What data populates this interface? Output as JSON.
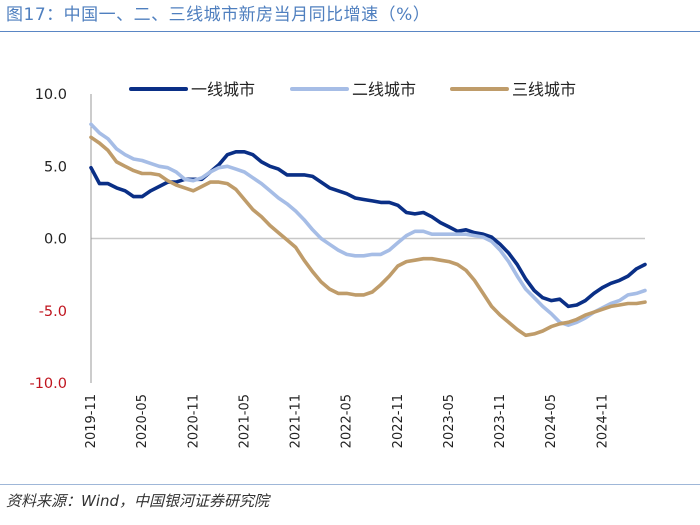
{
  "header": {
    "title": "图17：中国一、二、三线城市新房当月同比增速（%）"
  },
  "footer": {
    "source": "资料来源：Wind，中国银河证券研究院"
  },
  "colors": {
    "tier1": "#0a2f86",
    "tier2": "#a6bde6",
    "tier3": "#bf9c6a",
    "negative_label": "#c0141e",
    "positive_label": "#222222",
    "zero_line": "#c8c8c8",
    "axis": "#999999"
  },
  "chart_data": {
    "type": "line",
    "title": "中国一、二、三线城市新房当月同比增速（%）",
    "ylabel": "%",
    "ylim": [
      -10,
      10
    ],
    "yticks": [
      10,
      5,
      0,
      -5,
      -10
    ],
    "ytick_labels": [
      "10.0",
      "5.0",
      "0.0",
      "-5.0",
      "-10.0"
    ],
    "xlim": [
      0,
      65
    ],
    "xticks": [
      0,
      6,
      12,
      18,
      24,
      30,
      36,
      42,
      48,
      54,
      60
    ],
    "xtick_labels": [
      "2019-11",
      "2020-05",
      "2020-11",
      "2021-05",
      "2021-11",
      "2022-05",
      "2022-11",
      "2023-05",
      "2023-11",
      "2024-05",
      "2024-11"
    ],
    "legend_position": "top",
    "series": [
      {
        "name": "一线城市",
        "key": "tier1",
        "x": [
          0,
          1,
          2,
          3,
          4,
          5,
          6,
          7,
          8,
          9,
          10,
          11,
          12,
          13,
          14,
          15,
          16,
          17,
          18,
          19,
          20,
          21,
          22,
          23,
          24,
          25,
          26,
          27,
          28,
          29,
          30,
          31,
          32,
          33,
          34,
          35,
          36,
          37,
          38,
          39,
          40,
          41,
          42,
          43,
          44,
          45,
          46,
          47,
          48,
          49,
          50,
          51,
          52,
          53,
          54,
          55,
          56,
          57,
          58,
          59,
          60,
          61,
          62,
          63,
          64,
          65
        ],
        "values": [
          4.9,
          3.8,
          3.8,
          3.5,
          3.3,
          2.9,
          2.9,
          3.3,
          3.6,
          3.9,
          3.9,
          4.1,
          4.1,
          4.1,
          4.6,
          5.1,
          5.8,
          6.0,
          6.0,
          5.8,
          5.3,
          5.0,
          4.8,
          4.4,
          4.4,
          4.4,
          4.3,
          3.9,
          3.5,
          3.3,
          3.1,
          2.8,
          2.7,
          2.6,
          2.5,
          2.5,
          2.3,
          1.8,
          1.7,
          1.8,
          1.5,
          1.1,
          0.8,
          0.5,
          0.6,
          0.4,
          0.3,
          0.1,
          -0.4,
          -1.0,
          -1.8,
          -2.8,
          -3.6,
          -4.1,
          -4.3,
          -4.2,
          -4.7,
          -4.6,
          -4.3,
          -3.8,
          -3.4,
          -3.1,
          -2.9,
          -2.6,
          -2.1,
          -1.8
        ]
      },
      {
        "name": "二线城市",
        "key": "tier2",
        "x": [
          0,
          1,
          2,
          3,
          4,
          5,
          6,
          7,
          8,
          9,
          10,
          11,
          12,
          13,
          14,
          15,
          16,
          17,
          18,
          19,
          20,
          21,
          22,
          23,
          24,
          25,
          26,
          27,
          28,
          29,
          30,
          31,
          32,
          33,
          34,
          35,
          36,
          37,
          38,
          39,
          40,
          41,
          42,
          43,
          44,
          45,
          46,
          47,
          48,
          49,
          50,
          51,
          52,
          53,
          54,
          55,
          56,
          57,
          58,
          59,
          60,
          61,
          62,
          63,
          64,
          65
        ],
        "values": [
          7.9,
          7.3,
          6.9,
          6.2,
          5.8,
          5.5,
          5.4,
          5.2,
          5.0,
          4.9,
          4.6,
          4.1,
          4.0,
          4.2,
          4.6,
          4.9,
          5.0,
          4.8,
          4.6,
          4.2,
          3.8,
          3.3,
          2.8,
          2.4,
          1.9,
          1.3,
          0.6,
          0.0,
          -0.4,
          -0.8,
          -1.1,
          -1.2,
          -1.2,
          -1.1,
          -1.1,
          -0.8,
          -0.3,
          0.2,
          0.5,
          0.5,
          0.3,
          0.3,
          0.3,
          0.3,
          0.3,
          0.2,
          0.1,
          -0.2,
          -0.8,
          -1.6,
          -2.6,
          -3.5,
          -4.1,
          -4.7,
          -5.2,
          -5.8,
          -6.0,
          -5.8,
          -5.5,
          -5.1,
          -4.8,
          -4.5,
          -4.3,
          -3.9,
          -3.8,
          -3.6
        ]
      },
      {
        "name": "三线城市",
        "key": "tier3",
        "x": [
          0,
          1,
          2,
          3,
          4,
          5,
          6,
          7,
          8,
          9,
          10,
          11,
          12,
          13,
          14,
          15,
          16,
          17,
          18,
          19,
          20,
          21,
          22,
          23,
          24,
          25,
          26,
          27,
          28,
          29,
          30,
          31,
          32,
          33,
          34,
          35,
          36,
          37,
          38,
          39,
          40,
          41,
          42,
          43,
          44,
          45,
          46,
          47,
          48,
          49,
          50,
          51,
          52,
          53,
          54,
          55,
          56,
          57,
          58,
          59,
          60,
          61,
          62,
          63,
          64,
          65
        ],
        "values": [
          7.0,
          6.6,
          6.1,
          5.3,
          5.0,
          4.7,
          4.5,
          4.5,
          4.4,
          4.0,
          3.7,
          3.5,
          3.3,
          3.6,
          3.9,
          3.9,
          3.8,
          3.4,
          2.7,
          2.0,
          1.5,
          0.9,
          0.4,
          -0.1,
          -0.6,
          -1.5,
          -2.3,
          -3.0,
          -3.5,
          -3.8,
          -3.8,
          -3.9,
          -3.9,
          -3.7,
          -3.2,
          -2.6,
          -1.9,
          -1.6,
          -1.5,
          -1.4,
          -1.4,
          -1.5,
          -1.6,
          -1.8,
          -2.2,
          -2.9,
          -3.8,
          -4.7,
          -5.3,
          -5.8,
          -6.3,
          -6.7,
          -6.6,
          -6.4,
          -6.1,
          -5.9,
          -5.8,
          -5.6,
          -5.3,
          -5.1,
          -4.9,
          -4.7,
          -4.6,
          -4.5,
          -4.5,
          -4.4
        ]
      }
    ]
  }
}
